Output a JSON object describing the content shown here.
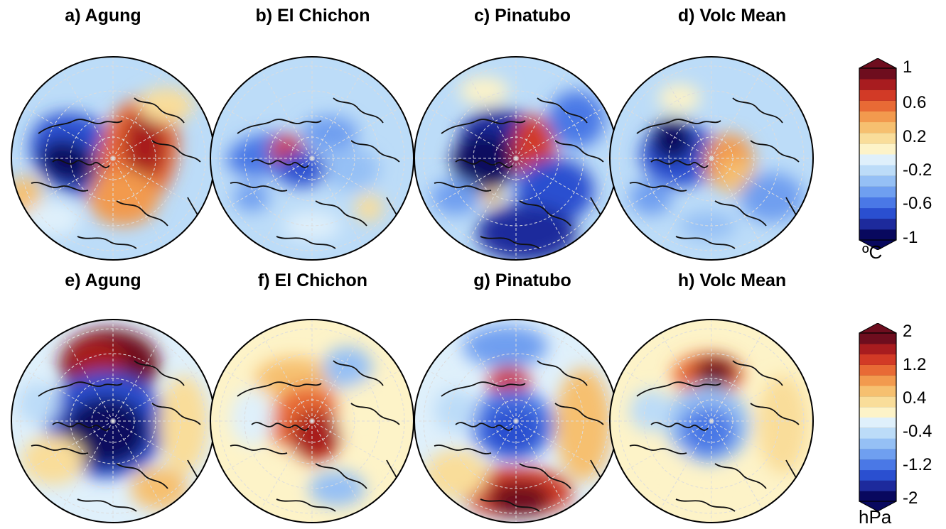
{
  "panels": [
    {
      "id": "a",
      "title": "a) Agung",
      "row": 0,
      "col": 0
    },
    {
      "id": "b",
      "title": "b) El Chichon",
      "row": 0,
      "col": 1
    },
    {
      "id": "c",
      "title": "c) Pinatubo",
      "row": 0,
      "col": 2
    },
    {
      "id": "d",
      "title": "d) Volc Mean",
      "row": 0,
      "col": 3
    },
    {
      "id": "e",
      "title": "e) Agung",
      "row": 1,
      "col": 0
    },
    {
      "id": "f",
      "title": "f) El Chichon",
      "row": 1,
      "col": 1
    },
    {
      "id": "g",
      "title": "g) Pinatubo",
      "row": 1,
      "col": 2
    },
    {
      "id": "h",
      "title": "h) Volc Mean",
      "row": 1,
      "col": 3
    }
  ],
  "colorbars": [
    {
      "unit": "ºC",
      "ticks": [
        "1",
        "0.6",
        "0.2",
        "-0.2",
        "-0.6",
        "-1"
      ]
    },
    {
      "unit": "hPa",
      "ticks": [
        "2",
        "1.2",
        "0.4",
        "-0.4",
        "-1.2",
        "-2"
      ]
    }
  ],
  "palette": [
    "#08085e",
    "#1d2a9c",
    "#2a4fd0",
    "#4a78e6",
    "#6f9ff0",
    "#95c0f5",
    "#bcdcf8",
    "#dff0fb",
    "#fdf3c8",
    "#f9dd9a",
    "#f6c070",
    "#f29a4e",
    "#e86a35",
    "#d23a26",
    "#a81c1f",
    "#6e0d1e"
  ],
  "colors": {
    "ocean_base": "#bcdcf8",
    "coast": "#111111",
    "grid": "#dddddd"
  }
}
